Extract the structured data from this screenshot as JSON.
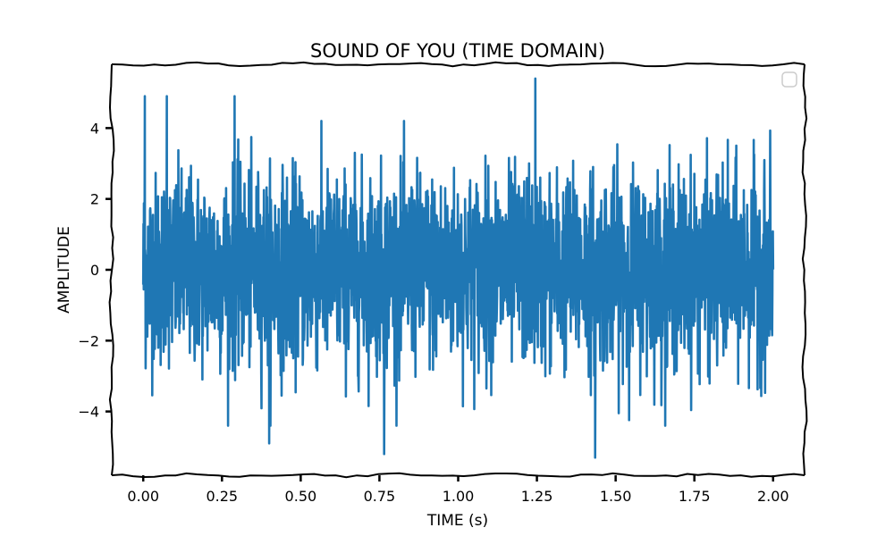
{
  "chart_data": {
    "type": "line",
    "title": "SOUND OF YOU (TIME DOMAIN)",
    "xlabel": "TIME (s)",
    "ylabel": "AMPLITUDE",
    "xlim": [
      -0.1,
      2.1
    ],
    "ylim": [
      -5.8,
      5.8
    ],
    "x_ticks": [
      0.0,
      0.25,
      0.5,
      0.75,
      1.0,
      1.25,
      1.5,
      1.75,
      2.0
    ],
    "x_tick_labels": [
      "0.00",
      "0.25",
      "0.50",
      "0.75",
      "1.00",
      "1.25",
      "1.50",
      "1.75",
      "2.00"
    ],
    "y_ticks": [
      -4,
      -2,
      0,
      2,
      4
    ],
    "y_tick_labels": [
      "−4",
      "−2",
      "0",
      "2",
      "4"
    ],
    "grid": false,
    "legend": "top-right (empty)",
    "series": [
      {
        "color": "#1f77b4",
        "x_range": [
          0.0,
          2.0
        ],
        "y_range": [
          -5.3,
          5.4
        ],
        "description": "dense noisy signal, roughly ±3 with peaks near ±5",
        "peaks": [
          {
            "x": 0.005,
            "y": 4.9
          },
          {
            "x": 0.075,
            "y": 4.9
          },
          {
            "x": 0.29,
            "y": 4.9
          },
          {
            "x": 1.245,
            "y": 5.4
          },
          {
            "x": 0.765,
            "y": -5.2
          },
          {
            "x": 1.435,
            "y": -5.3
          },
          {
            "x": 0.4,
            "y": -4.9
          }
        ]
      }
    ]
  }
}
